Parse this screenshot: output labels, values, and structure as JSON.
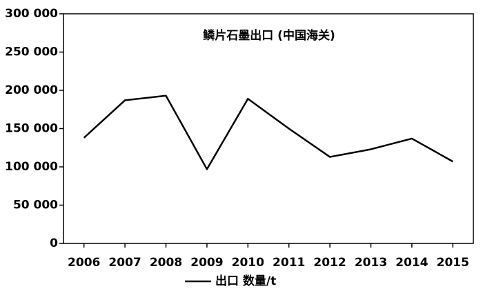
{
  "chart_data": {
    "type": "line",
    "title": "鳞片石墨出口 (中国海关)",
    "categories": [
      "2006",
      "2007",
      "2008",
      "2009",
      "2010",
      "2011",
      "2012",
      "2013",
      "2014",
      "2015"
    ],
    "series": [
      {
        "name": "出口 数量/t",
        "color": "#000000",
        "values": [
          138000,
          187000,
          193000,
          97000,
          189000,
          150000,
          113000,
          123000,
          137000,
          107000
        ]
      }
    ],
    "ylim": [
      0,
      300000
    ],
    "yticks": [
      0,
      {
        "value": 50000,
        "label": "50 000"
      },
      {
        "value": 100000,
        "label": "100 000"
      },
      {
        "value": 150000,
        "label": "150 000"
      },
      {
        "value": 200000,
        "label": "200 000"
      },
      {
        "value": 250000,
        "label": "250 000"
      },
      {
        "value": 300000,
        "label": "300 000"
      }
    ],
    "grid": false,
    "legend": "bottom"
  }
}
